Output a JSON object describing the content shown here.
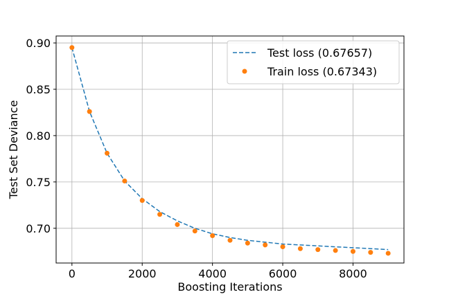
{
  "chart_data": {
    "type": "line",
    "xlabel": "Boosting Iterations",
    "ylabel": "Test Set Deviance",
    "xlim": [
      -450,
      9450
    ],
    "ylim": [
      0.6625,
      0.9075
    ],
    "xticks": [
      0,
      2000,
      4000,
      6000,
      8000
    ],
    "yticks": [
      0.7,
      0.75,
      0.8,
      0.85,
      0.9
    ],
    "xtick_labels": [
      "0",
      "2000",
      "4000",
      "6000",
      "8000"
    ],
    "ytick_labels": [
      "0.70",
      "0.75",
      "0.80",
      "0.85",
      "0.90"
    ],
    "grid": true,
    "legend_position": "top-right",
    "series": [
      {
        "name": "Test loss (0.67657)",
        "style": "dashed-line",
        "color": "#1f77b4",
        "x": [
          0,
          500,
          1000,
          1500,
          2000,
          2500,
          3000,
          3500,
          4000,
          4500,
          5000,
          5500,
          6000,
          6500,
          7000,
          7500,
          8000,
          8500,
          9000
        ],
        "values": [
          0.895,
          0.826,
          0.781,
          0.751,
          0.732,
          0.718,
          0.708,
          0.7,
          0.694,
          0.69,
          0.687,
          0.685,
          0.683,
          0.682,
          0.681,
          0.68,
          0.679,
          0.678,
          0.677
        ]
      },
      {
        "name": "Train loss (0.67343)",
        "style": "points",
        "color": "#ff7f0e",
        "x": [
          0,
          500,
          1000,
          1500,
          2000,
          2500,
          3000,
          3500,
          4000,
          4500,
          5000,
          5500,
          6000,
          6500,
          7000,
          7500,
          8000,
          8500,
          9000
        ],
        "values": [
          0.895,
          0.826,
          0.781,
          0.751,
          0.73,
          0.715,
          0.704,
          0.697,
          0.692,
          0.687,
          0.684,
          0.682,
          0.68,
          0.678,
          0.677,
          0.676,
          0.675,
          0.674,
          0.673
        ]
      }
    ]
  }
}
